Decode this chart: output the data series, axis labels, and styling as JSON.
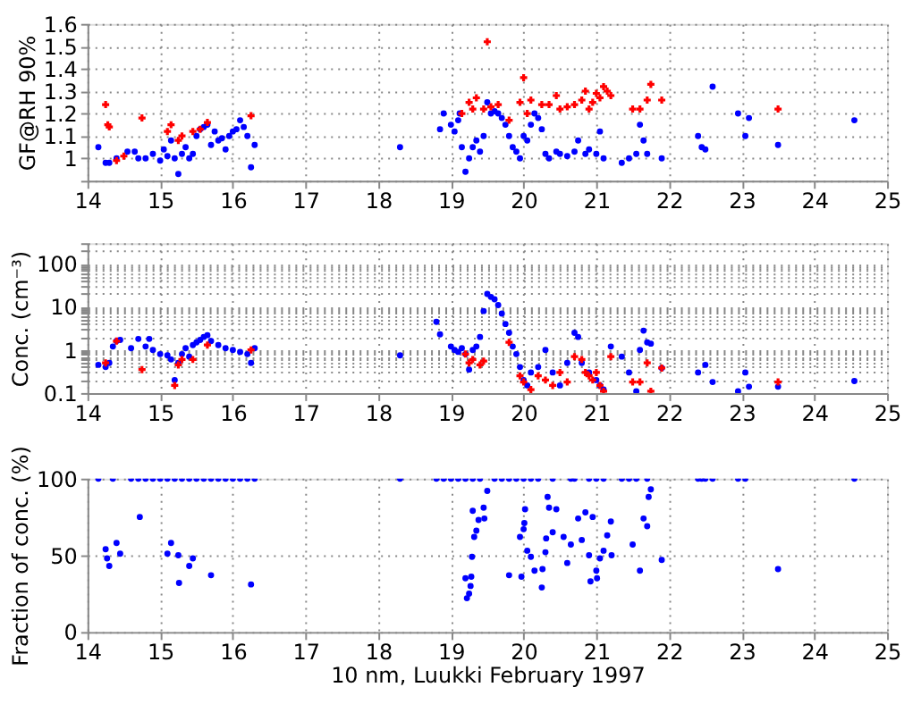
{
  "chart_data": [
    {
      "type": "scatter",
      "ylabel": "GF@RH 90%",
      "xlim": [
        14,
        25
      ],
      "xticks": [
        14,
        15,
        16,
        17,
        18,
        19,
        20,
        21,
        22,
        23,
        24,
        25
      ],
      "ylim": [
        0.9,
        1.6
      ],
      "yticks": [
        {
          "value": 0.9,
          "label": null
        },
        1,
        1.1,
        1.2,
        1.3,
        1.4,
        1.5,
        1.6
      ],
      "grid": true,
      "series": [
        {
          "color": "#0000ff",
          "marker": "circle",
          "x": [
            14.15,
            14.25,
            14.3,
            14.4,
            14.55,
            14.65,
            14.7,
            14.8,
            14.9,
            15.0,
            15.05,
            15.1,
            15.15,
            15.2,
            15.25,
            15.3,
            15.35,
            15.4,
            15.45,
            15.5,
            15.55,
            15.6,
            15.65,
            15.7,
            15.75,
            15.8,
            15.85,
            15.9,
            15.95,
            16.0,
            16.05,
            16.1,
            16.15,
            16.2,
            16.25,
            16.3,
            18.3,
            18.85,
            18.9,
            19.0,
            19.05,
            19.1,
            19.12,
            19.15,
            19.2,
            19.25,
            19.3,
            19.35,
            19.4,
            19.45,
            19.5,
            19.55,
            19.6,
            19.65,
            19.7,
            19.75,
            19.8,
            19.85,
            19.9,
            19.95,
            20.0,
            20.05,
            20.1,
            20.15,
            20.2,
            20.25,
            20.3,
            20.35,
            20.45,
            20.5,
            20.6,
            20.7,
            20.75,
            20.85,
            20.9,
            21.0,
            21.05,
            21.1,
            21.35,
            21.45,
            21.55,
            21.6,
            21.65,
            21.7,
            21.9,
            22.4,
            22.45,
            22.5,
            22.6,
            22.95,
            23.05,
            23.1,
            23.5,
            24.55
          ],
          "values": [
            1.05,
            0.98,
            0.98,
            1.0,
            1.03,
            1.03,
            1.0,
            1.0,
            1.02,
            0.99,
            1.04,
            1.01,
            1.08,
            1.0,
            0.93,
            1.02,
            1.05,
            1.0,
            1.02,
            1.1,
            1.13,
            1.14,
            1.15,
            1.06,
            1.12,
            1.08,
            1.09,
            1.04,
            1.1,
            1.12,
            1.13,
            1.17,
            1.14,
            1.1,
            0.96,
            1.06,
            1.05,
            1.13,
            1.2,
            1.15,
            1.12,
            1.17,
            1.2,
            1.05,
            0.94,
            1.0,
            1.05,
            1.08,
            1.03,
            1.1,
            1.25,
            1.2,
            1.21,
            1.2,
            1.18,
            1.15,
            1.1,
            1.05,
            1.03,
            1.0,
            1.1,
            1.08,
            1.15,
            1.2,
            1.18,
            1.13,
            1.02,
            1.0,
            1.03,
            1.02,
            1.01,
            1.03,
            1.08,
            1.02,
            1.04,
            1.02,
            1.12,
            1.0,
            0.98,
            1.0,
            1.02,
            1.15,
            1.08,
            1.02,
            1.0,
            1.1,
            1.05,
            1.04,
            1.32,
            1.2,
            1.1,
            1.18,
            1.06,
            1.17
          ]
        },
        {
          "color": "#ff0000",
          "marker": "cross",
          "x": [
            14.25,
            14.28,
            14.3,
            14.4,
            14.5,
            14.75,
            15.1,
            15.15,
            15.25,
            15.3,
            15.45,
            15.55,
            15.65,
            16.25,
            19.15,
            19.25,
            19.3,
            19.35,
            19.45,
            19.5,
            19.55,
            19.65,
            19.8,
            19.95,
            20.0,
            20.05,
            20.1,
            20.25,
            20.35,
            20.45,
            20.5,
            20.6,
            20.7,
            20.8,
            20.85,
            20.9,
            20.95,
            21.0,
            21.05,
            21.1,
            21.15,
            21.2,
            21.5,
            21.6,
            21.7,
            21.75,
            21.9,
            23.5
          ],
          "values": [
            1.24,
            1.15,
            1.14,
            0.99,
            1.01,
            1.18,
            1.12,
            1.15,
            1.08,
            1.1,
            1.12,
            1.13,
            1.16,
            1.19,
            1.2,
            1.25,
            1.22,
            1.27,
            1.22,
            1.52,
            1.23,
            1.24,
            1.17,
            1.25,
            1.36,
            1.2,
            1.26,
            1.24,
            1.24,
            1.28,
            1.22,
            1.23,
            1.24,
            1.26,
            1.3,
            1.22,
            1.25,
            1.29,
            1.27,
            1.32,
            1.3,
            1.28,
            1.22,
            1.22,
            1.26,
            1.33,
            1.26,
            1.22
          ]
        }
      ]
    },
    {
      "type": "scatter",
      "ylabel": "Conc. (cm⁻³)",
      "log": "y",
      "xlim": [
        14,
        25
      ],
      "xticks": [
        14,
        15,
        16,
        17,
        18,
        19,
        20,
        21,
        22,
        23,
        24,
        25
      ],
      "ylim": [
        0.1,
        300
      ],
      "yticks": [
        0.1,
        {
          "value": 0.2,
          "label": null
        },
        {
          "value": 0.3,
          "label": null
        },
        {
          "value": 0.4,
          "label": null
        },
        {
          "value": 0.5,
          "label": null
        },
        {
          "value": 0.6,
          "label": null
        },
        {
          "value": 0.7,
          "label": null
        },
        {
          "value": 0.8,
          "label": null
        },
        {
          "value": 0.9,
          "label": null
        },
        1,
        {
          "value": 2,
          "label": null
        },
        {
          "value": 3,
          "label": null
        },
        {
          "value": 4,
          "label": null
        },
        {
          "value": 5,
          "label": null
        },
        {
          "value": 6,
          "label": null
        },
        {
          "value": 7,
          "label": null
        },
        {
          "value": 8,
          "label": null
        },
        {
          "value": 9,
          "label": null
        },
        10,
        {
          "value": 20,
          "label": null
        },
        {
          "value": 30,
          "label": null
        },
        {
          "value": 40,
          "label": null
        },
        {
          "value": 50,
          "label": null
        },
        {
          "value": 60,
          "label": null
        },
        {
          "value": 70,
          "label": null
        },
        {
          "value": 80,
          "label": null
        },
        {
          "value": 90,
          "label": null
        },
        100,
        {
          "value": 200,
          "label": null
        },
        {
          "value": 300,
          "label": null
        }
      ],
      "grid": true,
      "series": [
        {
          "color": "#0000ff",
          "marker": "circle",
          "x": [
            14.15,
            14.25,
            14.3,
            14.35,
            14.4,
            14.45,
            14.6,
            14.7,
            14.8,
            14.85,
            14.9,
            15.0,
            15.1,
            15.15,
            15.2,
            15.25,
            15.3,
            15.35,
            15.4,
            15.45,
            15.5,
            15.55,
            15.6,
            15.65,
            15.7,
            15.8,
            15.9,
            16.0,
            16.1,
            16.2,
            16.25,
            16.3,
            18.3,
            18.8,
            18.85,
            19.0,
            19.05,
            19.1,
            19.15,
            19.2,
            19.25,
            19.3,
            19.35,
            19.4,
            19.45,
            19.5,
            19.55,
            19.6,
            19.65,
            19.7,
            19.75,
            19.8,
            19.85,
            19.9,
            19.95,
            20.0,
            20.05,
            20.1,
            20.2,
            20.3,
            20.4,
            20.5,
            20.6,
            20.7,
            20.75,
            20.8,
            20.9,
            21.0,
            21.05,
            21.1,
            21.2,
            21.35,
            21.45,
            21.55,
            21.6,
            21.65,
            21.7,
            21.75,
            21.9,
            22.4,
            22.5,
            22.6,
            22.95,
            23.05,
            23.1,
            23.5,
            24.55
          ],
          "values": [
            0.45,
            0.4,
            0.5,
            1.2,
            1.6,
            1.7,
            1.1,
            1.8,
            1.2,
            1.8,
            1.0,
            0.8,
            0.75,
            0.6,
            0.2,
            0.5,
            0.8,
            1.1,
            0.7,
            1.3,
            1.5,
            1.7,
            2.0,
            2.2,
            1.6,
            1.3,
            1.1,
            1.0,
            0.9,
            0.8,
            0.5,
            1.1,
            0.75,
            4.5,
            2.3,
            1.2,
            1.0,
            0.9,
            1.1,
            0.8,
            0.35,
            1.0,
            1.2,
            2.0,
            8,
            20,
            17,
            15,
            11,
            7,
            4,
            2.5,
            1.2,
            0.8,
            0.4,
            0.2,
            0.15,
            0.3,
            0.4,
            1.0,
            0.3,
            0.15,
            0.5,
            2.5,
            2.0,
            0.5,
            0.3,
            0.2,
            0.15,
            0.12,
            1.2,
            0.7,
            0.3,
            0.11,
            1.0,
            2.8,
            1.5,
            1.4,
            0.38,
            0.3,
            0.45,
            0.18,
            0.11,
            0.3,
            0.14,
            0.14,
            0.19
          ]
        },
        {
          "color": "#ff0000",
          "marker": "cross",
          "x": [
            14.25,
            14.4,
            14.75,
            15.2,
            15.25,
            15.3,
            15.45,
            15.65,
            16.25,
            19.2,
            19.25,
            19.3,
            19.4,
            19.45,
            19.8,
            19.95,
            20.0,
            20.1,
            20.2,
            20.3,
            20.4,
            20.5,
            20.6,
            20.7,
            20.8,
            20.85,
            20.9,
            20.95,
            21.0,
            21.05,
            21.1,
            21.2,
            21.5,
            21.6,
            21.7,
            21.75,
            21.9,
            23.5
          ],
          "values": [
            0.5,
            1.6,
            0.35,
            0.15,
            0.45,
            0.6,
            0.6,
            1.3,
            1.0,
            0.8,
            0.5,
            0.6,
            0.45,
            0.55,
            1.5,
            0.25,
            0.18,
            0.12,
            0.25,
            0.2,
            0.15,
            0.3,
            0.18,
            0.7,
            0.6,
            0.3,
            0.25,
            0.2,
            0.3,
            0.15,
            0.11,
            0.7,
            0.18,
            0.18,
            0.5,
            0.11,
            0.38,
            0.18
          ]
        }
      ]
    },
    {
      "type": "scatter",
      "ylabel": "Fraction of conc. (%)",
      "xlabel": "10 nm, Luukki February 1997",
      "xlim": [
        14,
        25
      ],
      "xticks": [
        14,
        15,
        16,
        17,
        18,
        19,
        20,
        21,
        22,
        23,
        24,
        25
      ],
      "ylim": [
        0,
        100
      ],
      "yticks": [
        0,
        50,
        100
      ],
      "grid": true,
      "series": [
        {
          "color": "#0000ff",
          "marker": "circle",
          "x": [
            14.15,
            14.35,
            14.6,
            14.7,
            14.8,
            14.9,
            15.0,
            15.1,
            15.2,
            15.3,
            15.4,
            15.5,
            15.6,
            15.7,
            15.8,
            15.9,
            16.0,
            16.1,
            16.2,
            16.3,
            18.3,
            18.8,
            18.9,
            19.0,
            19.1,
            19.2,
            19.3,
            19.4,
            19.6,
            19.7,
            19.8,
            19.9,
            20.0,
            20.1,
            20.2,
            20.4,
            20.65,
            20.7,
            20.9,
            21.0,
            21.1,
            21.35,
            21.45,
            21.55,
            21.7,
            22.4,
            22.45,
            22.5,
            22.6,
            22.95,
            23.05,
            24.55,
            14.25,
            14.27,
            14.3,
            14.4,
            14.45,
            14.72,
            15.1,
            15.15,
            15.25,
            15.26,
            15.45,
            15.4,
            15.7,
            16.25,
            19.2,
            19.22,
            19.25,
            19.27,
            19.28,
            19.29,
            19.3,
            19.32,
            19.35,
            19.38,
            19.45,
            19.46,
            19.5,
            19.8,
            19.95,
            19.97,
            20.0,
            20.01,
            20.02,
            20.05,
            20.1,
            20.15,
            20.25,
            20.26,
            20.3,
            20.31,
            20.33,
            20.35,
            20.4,
            20.45,
            20.55,
            20.6,
            20.65,
            20.75,
            20.8,
            20.85,
            20.9,
            20.92,
            20.95,
            21.0,
            21.01,
            21.05,
            21.1,
            21.15,
            21.2,
            21.21,
            21.5,
            21.6,
            21.65,
            21.7,
            21.72,
            21.75,
            21.9,
            23.5
          ],
          "values": [
            100,
            100,
            100,
            100,
            100,
            100,
            100,
            100,
            100,
            100,
            100,
            100,
            100,
            100,
            100,
            100,
            100,
            100,
            100,
            100,
            100,
            100,
            100,
            100,
            100,
            100,
            100,
            100,
            100,
            100,
            100,
            100,
            100,
            100,
            100,
            100,
            100,
            100,
            100,
            100,
            100,
            100,
            100,
            100,
            100,
            100,
            100,
            100,
            100,
            100,
            100,
            100,
            54,
            48,
            43,
            58,
            51,
            75,
            51,
            58,
            50,
            32,
            48,
            43,
            37,
            31,
            35,
            22,
            25,
            30,
            36,
            49,
            79,
            62,
            66,
            73,
            81,
            74,
            92,
            37,
            62,
            36,
            67,
            71,
            80,
            53,
            49,
            40,
            29,
            41,
            52,
            61,
            88,
            81,
            65,
            80,
            62,
            45,
            57,
            74,
            60,
            78,
            50,
            33,
            75,
            40,
            35,
            48,
            53,
            63,
            72,
            50,
            57,
            40,
            74,
            69,
            88,
            93,
            47,
            41
          ]
        }
      ]
    }
  ]
}
